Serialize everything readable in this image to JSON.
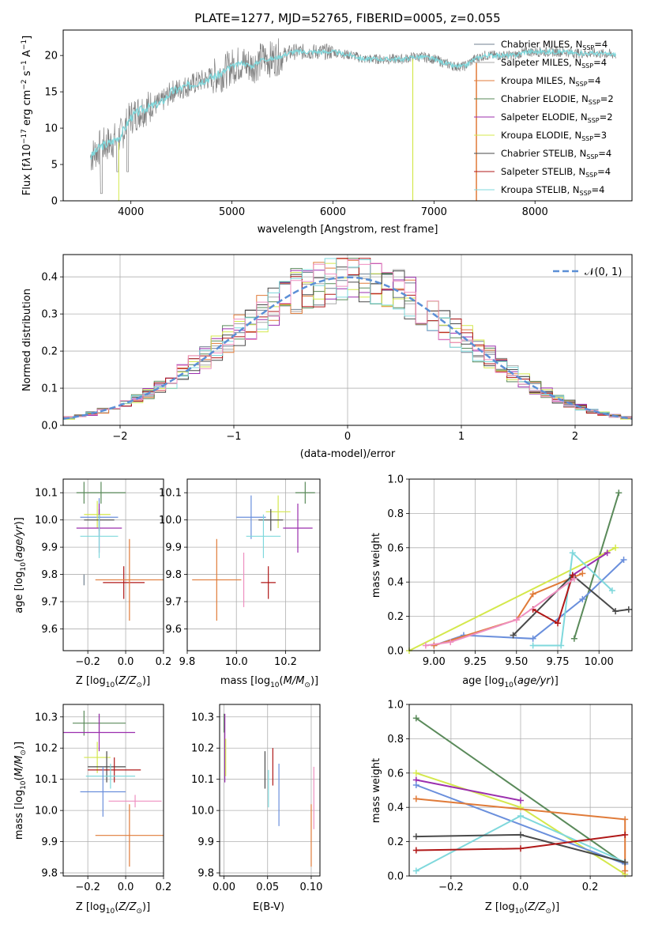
{
  "figure_title": "PLATE=1277, MJD=52765, FIBERID=0005, z=0.055",
  "colors": {
    "Chabrier MILES": "#708090",
    "Salpeter MILES": "#a9a9a9",
    "Kroupa MILES": "#e07b39",
    "Chabrier ELODIE": "#5a8a5a",
    "Salpeter ELODIE": "#9b2fae",
    "Kroupa ELODIE": "#d4e84c",
    "Chabrier STELIB": "#4a4a4a",
    "Salpeter STELIB": "#b01818",
    "Kroupa STELIB": "#7fd8dc",
    "royal": "#6a8fdc",
    "pink": "#ee8fc0",
    "data": "#808080",
    "normal": "#5b8fd6"
  },
  "chart_data": [
    {
      "id": "spectrum",
      "type": "line",
      "xlabel": "wavelength [Angstrom, rest frame]",
      "xlim": [
        3330,
        8960
      ],
      "ylim": [
        0,
        23.5
      ],
      "xticks": [
        "4000",
        "5000",
        "6000",
        "7000",
        "8000"
      ],
      "yticks": [
        "0",
        "5",
        "10",
        "15",
        "20"
      ],
      "legend_position": "top-right",
      "legend": [
        {
          "label": "Chabrier MILES, N_SSP=4",
          "color": "#708090"
        },
        {
          "label": "Salpeter MILES, N_SSP=4",
          "color": "#a9a9a9"
        },
        {
          "label": "Kroupa MILES, N_SSP=4",
          "color": "#e07b39"
        },
        {
          "label": "Chabrier ELODIE, N_SSP=2",
          "color": "#5a8a5a"
        },
        {
          "label": "Salpeter ELODIE, N_SSP=2",
          "color": "#9b2fae"
        },
        {
          "label": "Kroupa ELODIE, N_SSP=3",
          "color": "#d4e84c"
        },
        {
          "label": "Chabrier STELIB, N_SSP=4",
          "color": "#4a4a4a"
        },
        {
          "label": "Salpeter STELIB, N_SSP=4",
          "color": "#b01818"
        },
        {
          "label": "Kroupa STELIB, N_SSP=4",
          "color": "#7fd8dc"
        }
      ],
      "continuum": [
        [
          3600,
          6
        ],
        [
          3700,
          7.5
        ],
        [
          3800,
          8
        ],
        [
          3900,
          9
        ],
        [
          4000,
          11.5
        ],
        [
          4100,
          12.5
        ],
        [
          4200,
          13
        ],
        [
          4300,
          13.5
        ],
        [
          4400,
          15
        ],
        [
          4500,
          15.5
        ],
        [
          4600,
          16
        ],
        [
          4700,
          16.5
        ],
        [
          4800,
          17
        ],
        [
          4900,
          17.5
        ],
        [
          5000,
          18.5
        ],
        [
          5100,
          19
        ],
        [
          5200,
          18.5
        ],
        [
          5300,
          19.5
        ],
        [
          5400,
          19.5
        ],
        [
          5500,
          20
        ],
        [
          5600,
          20.5
        ],
        [
          5700,
          20.5
        ],
        [
          5800,
          20.5
        ],
        [
          5900,
          20.5
        ],
        [
          6000,
          20.5
        ],
        [
          6100,
          20.2
        ],
        [
          6200,
          20
        ],
        [
          6300,
          19.5
        ],
        [
          6400,
          19.5
        ],
        [
          6500,
          19.5
        ],
        [
          6600,
          19.5
        ],
        [
          6700,
          19.5
        ],
        [
          6800,
          19.8
        ],
        [
          6900,
          19.8
        ],
        [
          7000,
          19.5
        ],
        [
          7100,
          19
        ],
        [
          7200,
          18.5
        ],
        [
          7300,
          18.5
        ],
        [
          7400,
          19.5
        ],
        [
          7500,
          20
        ],
        [
          7600,
          20
        ],
        [
          7700,
          20
        ],
        [
          7800,
          20
        ],
        [
          7900,
          20.5
        ],
        [
          8000,
          20.5
        ],
        [
          8100,
          20.5
        ],
        [
          8200,
          20.5
        ],
        [
          8300,
          20.5
        ],
        [
          8400,
          20.3
        ],
        [
          8500,
          20.3
        ],
        [
          8600,
          20.3
        ],
        [
          8700,
          20.2
        ],
        [
          8800,
          20.1
        ]
      ]
    },
    {
      "id": "residuals",
      "type": "histogram",
      "xlabel": "(data-model)/error",
      "ylabel": "Normed distribution",
      "xlim": [
        -2.5,
        2.5
      ],
      "ylim": [
        0,
        0.46
      ],
      "xticks": [
        "−2",
        "−1",
        "0",
        "1",
        "2"
      ],
      "yticks": [
        "0.0",
        "0.1",
        "0.2",
        "0.3",
        "0.4"
      ],
      "legend_label": "𝒩(0, 1)",
      "legend_position": "top-right",
      "grid": true
    },
    {
      "id": "age_Z",
      "type": "scatter",
      "xlabel": "Z [log₁₀(Z/Z⊙)]",
      "ylabel": "age  [log₁₀(age/yr)]",
      "xlim": [
        -0.33,
        0.2
      ],
      "ylim": [
        9.52,
        10.15
      ],
      "xticks": [
        "−0.2",
        "0.0",
        "0.2"
      ],
      "yticks": [
        "9.6",
        "9.7",
        "9.8",
        "9.9",
        "10.0",
        "10.1"
      ],
      "points": [
        {
          "x": -0.13,
          "y": 10.1,
          "xerr": 0.13,
          "yerr": 0.04,
          "color": "#5a8a5a"
        },
        {
          "x": -0.22,
          "y": 10.1,
          "xerr": 0.0,
          "yerr": 0.04,
          "color": "#5a8a5a"
        },
        {
          "x": -0.14,
          "y": 10.01,
          "xerr": 0.1,
          "yerr": 0.07,
          "color": "#6a8fdc"
        },
        {
          "x": -0.15,
          "y": 10.02,
          "xerr": 0.07,
          "yerr": 0.05,
          "color": "#d4e84c"
        },
        {
          "x": -0.14,
          "y": 10.0,
          "xerr": 0.08,
          "yerr": 0.04,
          "color": "#4a4a4a"
        },
        {
          "x": -0.14,
          "y": 9.97,
          "xerr": 0.12,
          "yerr": 0.09,
          "color": "#9b2fae"
        },
        {
          "x": -0.14,
          "y": 9.94,
          "xerr": 0.1,
          "yerr": 0.08,
          "color": "#7fd8dc"
        },
        {
          "x": -0.01,
          "y": 9.77,
          "xerr": 0.11,
          "yerr": 0.06,
          "color": "#b01818"
        },
        {
          "x": 0.02,
          "y": 9.78,
          "xerr": 0.18,
          "yerr": 0.15,
          "color": "#e07b39"
        },
        {
          "x": -0.22,
          "y": 9.78,
          "xerr": 0.0,
          "yerr": 0.02,
          "color": "#708090"
        }
      ]
    },
    {
      "id": "age_mass",
      "type": "scatter",
      "xlabel": "mass [log₁₀(M/M⊙)]",
      "xlim": [
        9.8,
        10.34
      ],
      "ylim": [
        9.52,
        10.15
      ],
      "xticks": [
        "9.8",
        "10.0",
        "10.2"
      ],
      "yticks": [
        "9.6",
        "9.7",
        "9.8",
        "9.9",
        "10.0",
        "10.1"
      ],
      "points": [
        {
          "x": 10.28,
          "y": 10.1,
          "xerr": 0.04,
          "yerr": 0.04,
          "color": "#5a8a5a"
        },
        {
          "x": 10.06,
          "y": 10.01,
          "xerr": 0.06,
          "yerr": 0.08,
          "color": "#6a8fdc"
        },
        {
          "x": 10.17,
          "y": 10.03,
          "xerr": 0.05,
          "yerr": 0.06,
          "color": "#d4e84c"
        },
        {
          "x": 10.14,
          "y": 10.0,
          "xerr": 0.05,
          "yerr": 0.04,
          "color": "#4a4a4a"
        },
        {
          "x": 10.25,
          "y": 9.97,
          "xerr": 0.06,
          "yerr": 0.09,
          "color": "#9b2fae"
        },
        {
          "x": 10.11,
          "y": 9.94,
          "xerr": 0.07,
          "yerr": 0.08,
          "color": "#7fd8dc"
        },
        {
          "x": 10.13,
          "y": 9.77,
          "xerr": 0.03,
          "yerr": 0.06,
          "color": "#b01818"
        },
        {
          "x": 10.03,
          "y": 9.78,
          "xerr": 0.0,
          "yerr": 0.1,
          "color": "#ee8fc0"
        },
        {
          "x": 9.92,
          "y": 9.78,
          "xerr": 0.1,
          "yerr": 0.15,
          "color": "#e07b39"
        }
      ]
    },
    {
      "id": "weight_age",
      "type": "line",
      "xlabel": "age  [log₁₀(age/yr)]",
      "ylabel": "mass weight",
      "xlim": [
        8.85,
        10.2
      ],
      "ylim": [
        0,
        1
      ],
      "xticks": [
        "9.00",
        "9.25",
        "9.50",
        "9.75",
        "10.00"
      ],
      "yticks": [
        "0.0",
        "0.2",
        "0.4",
        "0.6",
        "0.8",
        "1.0"
      ],
      "grid": true,
      "series": [
        {
          "color": "#5a8a5a",
          "x": [
            9.85,
            10.12
          ],
          "y": [
            0.07,
            0.92
          ]
        },
        {
          "color": "#d4e84c",
          "x": [
            8.85,
            10.1
          ],
          "y": [
            0.0,
            0.6
          ]
        },
        {
          "color": "#9b2fae",
          "x": [
            9.84,
            10.05
          ],
          "y": [
            0.44,
            0.57
          ]
        },
        {
          "color": "#6a8fdc",
          "x": [
            9.0,
            9.18,
            9.6,
            9.9,
            10.15
          ],
          "y": [
            0.03,
            0.09,
            0.07,
            0.3,
            0.53
          ]
        },
        {
          "color": "#e07b39",
          "x": [
            9.0,
            9.5,
            9.6,
            9.9
          ],
          "y": [
            0.03,
            0.18,
            0.33,
            0.45
          ]
        },
        {
          "color": "#7fd8dc",
          "x": [
            9.6,
            9.77,
            9.84,
            10.08
          ],
          "y": [
            0.03,
            0.03,
            0.57,
            0.35
          ]
        },
        {
          "color": "#4a4a4a",
          "x": [
            9.48,
            9.84,
            10.1,
            10.18
          ],
          "y": [
            0.09,
            0.44,
            0.23,
            0.24
          ]
        },
        {
          "color": "#b01818",
          "x": [
            9.6,
            9.75,
            9.84
          ],
          "y": [
            0.24,
            0.16,
            0.44
          ]
        },
        {
          "color": "#ee8fc0",
          "x": [
            8.95,
            9.1,
            9.5,
            9.85
          ],
          "y": [
            0.03,
            0.05,
            0.18,
            0.42
          ]
        }
      ]
    },
    {
      "id": "mass_Z",
      "type": "scatter",
      "xlabel": "Z [log₁₀(Z/Z⊙)]",
      "ylabel": "mass [log₁₀(M/M⊙)]",
      "xlim": [
        -0.33,
        0.2
      ],
      "ylim": [
        9.79,
        10.34
      ],
      "xticks": [
        "−0.2",
        "0.0",
        "0.2"
      ],
      "yticks": [
        "9.8",
        "9.9",
        "10.0",
        "10.1",
        "10.2",
        "10.3"
      ],
      "points": [
        {
          "x": -0.14,
          "y": 10.28,
          "xerr": 0.14,
          "yerr": 0.03,
          "color": "#5a8a5a"
        },
        {
          "x": -0.22,
          "y": 10.28,
          "xerr": 0.0,
          "yerr": 0.04,
          "color": "#5a8a5a"
        },
        {
          "x": -0.14,
          "y": 10.25,
          "xerr": 0.19,
          "yerr": 0.06,
          "color": "#9b2fae"
        },
        {
          "x": -0.15,
          "y": 10.17,
          "xerr": 0.07,
          "yerr": 0.05,
          "color": "#d4e84c"
        },
        {
          "x": -0.1,
          "y": 10.14,
          "xerr": 0.1,
          "yerr": 0.05,
          "color": "#4a4a4a"
        },
        {
          "x": -0.06,
          "y": 10.13,
          "xerr": 0.14,
          "yerr": 0.04,
          "color": "#b01818"
        },
        {
          "x": -0.08,
          "y": 10.11,
          "xerr": 0.13,
          "yerr": 0.04,
          "color": "#7fd8dc"
        },
        {
          "x": -0.12,
          "y": 10.06,
          "xerr": 0.12,
          "yerr": 0.08,
          "color": "#6a8fdc"
        },
        {
          "x": 0.05,
          "y": 10.03,
          "xerr": 0.14,
          "yerr": 0.02,
          "color": "#ee8fc0"
        },
        {
          "x": 0.02,
          "y": 9.92,
          "xerr": 0.18,
          "yerr": 0.1,
          "color": "#e07b39"
        }
      ]
    },
    {
      "id": "mass_ebv",
      "type": "scatter",
      "xlabel": "E(B-V)",
      "xlim": [
        -0.005,
        0.11
      ],
      "ylim": [
        9.79,
        10.34
      ],
      "xticks": [
        "0.00",
        "0.05",
        "0.10"
      ],
      "yticks": [
        "9.8",
        "9.9",
        "10.0",
        "10.1",
        "10.2",
        "10.3"
      ],
      "points": [
        {
          "x": 0.0,
          "y": 10.28,
          "xerr": 0.0,
          "yerr": 0.03,
          "color": "#5a8a5a"
        },
        {
          "x": 0.001,
          "y": 10.2,
          "xerr": 0.0,
          "yerr": 0.11,
          "color": "#9b2fae"
        },
        {
          "x": 0.002,
          "y": 10.17,
          "xerr": 0.0,
          "yerr": 0.06,
          "color": "#d4e84c"
        },
        {
          "x": 0.047,
          "y": 10.13,
          "xerr": 0.0,
          "yerr": 0.06,
          "color": "#4a4a4a"
        },
        {
          "x": 0.051,
          "y": 10.07,
          "xerr": 0.0,
          "yerr": 0.06,
          "color": "#7fd8dc"
        },
        {
          "x": 0.056,
          "y": 10.14,
          "xerr": 0.0,
          "yerr": 0.06,
          "color": "#b01818"
        },
        {
          "x": 0.063,
          "y": 10.05,
          "xerr": 0.0,
          "yerr": 0.1,
          "color": "#6a8fdc"
        },
        {
          "x": 0.103,
          "y": 10.04,
          "xerr": 0.0,
          "yerr": 0.1,
          "color": "#ee8fc0"
        },
        {
          "x": 0.1,
          "y": 9.92,
          "xerr": 0.0,
          "yerr": 0.1,
          "color": "#e07b39"
        }
      ]
    },
    {
      "id": "weight_Z",
      "type": "line",
      "xlabel": "Z [log₁₀(Z/Z⊙)]",
      "ylabel": "mass weight",
      "xlim": [
        -0.32,
        0.32
      ],
      "ylim": [
        0,
        1
      ],
      "xticks": [
        "−0.2",
        "0.0",
        "0.2"
      ],
      "yticks": [
        "0.0",
        "0.2",
        "0.4",
        "0.6",
        "0.8",
        "1.0"
      ],
      "grid": true,
      "series": [
        {
          "color": "#5a8a5a",
          "x": [
            -0.3,
            0.3
          ],
          "y": [
            0.92,
            0.07
          ]
        },
        {
          "color": "#d4e84c",
          "x": [
            -0.3,
            0.0,
            0.3
          ],
          "y": [
            0.6,
            0.4,
            0.01
          ]
        },
        {
          "color": "#9b2fae",
          "x": [
            -0.3,
            0.0
          ],
          "y": [
            0.56,
            0.44
          ]
        },
        {
          "color": "#6a8fdc",
          "x": [
            -0.3,
            0.3
          ],
          "y": [
            0.53,
            0.07
          ]
        },
        {
          "color": "#e07b39",
          "x": [
            -0.3,
            0.3,
            0.3
          ],
          "y": [
            0.45,
            0.33,
            0.03
          ]
        },
        {
          "color": "#7fd8dc",
          "x": [
            -0.3,
            0.0,
            0.3
          ],
          "y": [
            0.03,
            0.35,
            0.08
          ]
        },
        {
          "color": "#4a4a4a",
          "x": [
            -0.3,
            0.0,
            0.3
          ],
          "y": [
            0.23,
            0.24,
            0.08
          ]
        },
        {
          "color": "#b01818",
          "x": [
            -0.3,
            0.0,
            0.3
          ],
          "y": [
            0.15,
            0.16,
            0.24
          ]
        }
      ]
    }
  ]
}
